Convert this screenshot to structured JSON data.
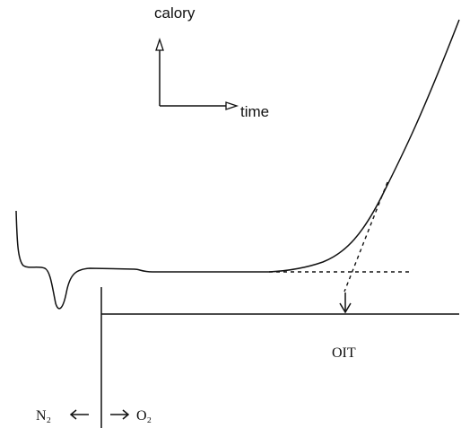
{
  "labels": {
    "y_axis": "calory",
    "x_axis": "time",
    "oit": "OIT",
    "left_gas": "N₂",
    "right_gas": "O₂"
  }
}
